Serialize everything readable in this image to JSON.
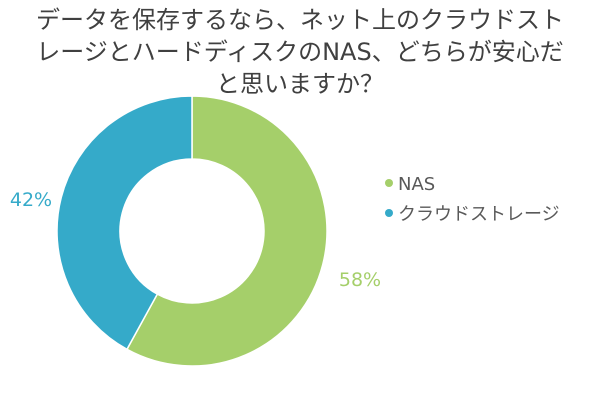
{
  "chart_data": {
    "type": "pie",
    "variant": "donut",
    "title": "データを保存するなら、ネット上のクラウドストレージとハードディスクのNAS、どちらが安心だと思いますか？",
    "title_lines": [
      "データを保存するなら、ネット上のクラウドスト",
      "レージとハードディスクのNAS、どちらが安心だ",
      "と思いますか？"
    ],
    "slices": [
      {
        "name": "NAS",
        "value": 58,
        "label": "58%",
        "color": "#a5cf6a"
      },
      {
        "name": "クラウドストレージ",
        "value": 42,
        "label": "42%",
        "color": "#35aac9"
      }
    ],
    "legend": {
      "placement": "right",
      "items": [
        "NAS",
        "クラウドストレージ"
      ]
    }
  }
}
